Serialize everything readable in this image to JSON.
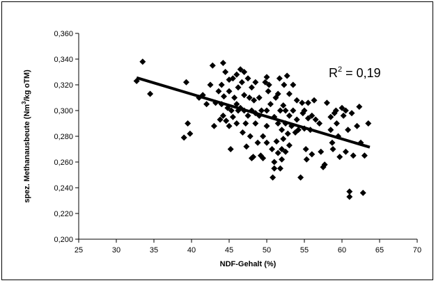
{
  "chart_data": {
    "type": "scatter",
    "title": "",
    "xlabel": "NDF-Gehalt (%)",
    "ylabel_parts": [
      "spez. Methanausbeute (Nm",
      "3",
      "/kg oTM)"
    ],
    "xlim": [
      25,
      70
    ],
    "ylim": [
      0.2,
      0.36
    ],
    "x_ticks": [
      "25",
      "30",
      "35",
      "40",
      "45",
      "50",
      "55",
      "60",
      "65",
      "70"
    ],
    "y_ticks": [
      "0,200",
      "0,220",
      "0,240",
      "0,260",
      "0,280",
      "0,300",
      "0,320",
      "0,340",
      "0,360"
    ],
    "grid": false,
    "legend": "none",
    "marker": "diamond",
    "marker_color": "#000000",
    "points": [
      [
        32.7,
        0.323
      ],
      [
        33.5,
        0.338
      ],
      [
        34.5,
        0.313
      ],
      [
        39.0,
        0.279
      ],
      [
        39.3,
        0.322
      ],
      [
        39.5,
        0.29
      ],
      [
        39.8,
        0.282
      ],
      [
        41.0,
        0.31
      ],
      [
        41.5,
        0.312
      ],
      [
        42.0,
        0.305
      ],
      [
        42.5,
        0.32
      ],
      [
        42.8,
        0.335
      ],
      [
        43.0,
        0.288
      ],
      [
        43.2,
        0.306
      ],
      [
        43.6,
        0.315
      ],
      [
        43.8,
        0.293
      ],
      [
        44.0,
        0.305
      ],
      [
        44.0,
        0.32
      ],
      [
        44.2,
        0.296
      ],
      [
        44.2,
        0.337
      ],
      [
        44.3,
        0.311
      ],
      [
        44.5,
        0.33
      ],
      [
        44.6,
        0.292
      ],
      [
        44.8,
        0.302
      ],
      [
        45.0,
        0.288
      ],
      [
        45.0,
        0.315
      ],
      [
        45.0,
        0.324
      ],
      [
        45.2,
        0.27
      ],
      [
        45.3,
        0.3
      ],
      [
        45.5,
        0.295
      ],
      [
        45.5,
        0.325
      ],
      [
        45.7,
        0.31
      ],
      [
        46.0,
        0.328
      ],
      [
        46.0,
        0.305
      ],
      [
        46.0,
        0.29
      ],
      [
        46.2,
        0.3
      ],
      [
        46.2,
        0.318
      ],
      [
        46.5,
        0.302
      ],
      [
        46.5,
        0.332
      ],
      [
        46.7,
        0.322
      ],
      [
        46.8,
        0.283
      ],
      [
        47.0,
        0.3
      ],
      [
        47.0,
        0.312
      ],
      [
        47.0,
        0.33
      ],
      [
        47.2,
        0.29
      ],
      [
        47.3,
        0.272
      ],
      [
        47.5,
        0.296
      ],
      [
        47.5,
        0.325
      ],
      [
        47.7,
        0.31
      ],
      [
        47.8,
        0.28
      ],
      [
        48.0,
        0.3
      ],
      [
        48.0,
        0.318
      ],
      [
        48.0,
        0.263
      ],
      [
        48.2,
        0.264
      ],
      [
        48.3,
        0.308
      ],
      [
        48.5,
        0.298
      ],
      [
        48.5,
        0.322
      ],
      [
        48.5,
        0.29
      ],
      [
        48.8,
        0.275
      ],
      [
        49.0,
        0.31
      ],
      [
        49.0,
        0.296
      ],
      [
        49.2,
        0.265
      ],
      [
        49.3,
        0.3
      ],
      [
        49.5,
        0.263
      ],
      [
        49.5,
        0.28
      ],
      [
        49.8,
        0.322
      ],
      [
        50.0,
        0.326
      ],
      [
        50.0,
        0.3
      ],
      [
        50.0,
        0.288
      ],
      [
        50.0,
        0.275
      ],
      [
        50.2,
        0.315
      ],
      [
        50.3,
        0.32
      ],
      [
        50.5,
        0.305
      ],
      [
        50.7,
        0.27
      ],
      [
        50.8,
        0.248
      ],
      [
        51.0,
        0.295
      ],
      [
        51.0,
        0.26
      ],
      [
        51.0,
        0.255
      ],
      [
        51.2,
        0.31
      ],
      [
        51.3,
        0.276
      ],
      [
        51.5,
        0.29
      ],
      [
        51.5,
        0.267
      ],
      [
        51.5,
        0.313
      ],
      [
        51.7,
        0.325
      ],
      [
        51.8,
        0.3
      ],
      [
        51.8,
        0.255
      ],
      [
        52.0,
        0.27
      ],
      [
        52.0,
        0.285
      ],
      [
        52.0,
        0.262
      ],
      [
        52.2,
        0.304
      ],
      [
        52.2,
        0.278
      ],
      [
        52.3,
        0.32
      ],
      [
        52.5,
        0.29
      ],
      [
        52.5,
        0.268
      ],
      [
        52.5,
        0.3
      ],
      [
        52.7,
        0.327
      ],
      [
        52.8,
        0.282
      ],
      [
        53.0,
        0.313
      ],
      [
        53.0,
        0.296
      ],
      [
        53.0,
        0.273
      ],
      [
        53.3,
        0.288
      ],
      [
        53.5,
        0.3
      ],
      [
        53.5,
        0.32
      ],
      [
        53.8,
        0.283
      ],
      [
        54.0,
        0.308
      ],
      [
        54.0,
        0.293
      ],
      [
        54.2,
        0.285
      ],
      [
        54.5,
        0.248
      ],
      [
        54.7,
        0.306
      ],
      [
        54.8,
        0.298
      ],
      [
        55.0,
        0.286
      ],
      [
        55.0,
        0.3
      ],
      [
        55.2,
        0.27
      ],
      [
        55.3,
        0.262
      ],
      [
        55.5,
        0.294
      ],
      [
        55.5,
        0.306
      ],
      [
        55.8,
        0.285
      ],
      [
        56.0,
        0.266
      ],
      [
        56.0,
        0.296
      ],
      [
        56.3,
        0.308
      ],
      [
        56.5,
        0.293
      ],
      [
        57.0,
        0.29
      ],
      [
        57.2,
        0.268
      ],
      [
        57.5,
        0.256
      ],
      [
        57.7,
        0.258
      ],
      [
        58.0,
        0.306
      ],
      [
        58.5,
        0.295
      ],
      [
        58.5,
        0.285
      ],
      [
        58.7,
        0.275
      ],
      [
        58.8,
        0.27
      ],
      [
        59.0,
        0.298
      ],
      [
        59.2,
        0.3
      ],
      [
        59.3,
        0.29
      ],
      [
        59.5,
        0.28
      ],
      [
        59.7,
        0.264
      ],
      [
        60.0,
        0.302
      ],
      [
        60.2,
        0.296
      ],
      [
        60.5,
        0.3
      ],
      [
        60.5,
        0.268
      ],
      [
        60.8,
        0.285
      ],
      [
        61.0,
        0.237
      ],
      [
        61.0,
        0.233
      ],
      [
        61.3,
        0.298
      ],
      [
        61.5,
        0.265
      ],
      [
        62.0,
        0.288
      ],
      [
        62.3,
        0.303
      ],
      [
        62.5,
        0.275
      ],
      [
        62.8,
        0.236
      ],
      [
        63.0,
        0.265
      ],
      [
        63.5,
        0.29
      ]
    ],
    "trendline": {
      "x": [
        32.7,
        63.7
      ],
      "y": [
        0.3255,
        0.2715
      ]
    },
    "annotation_parts": [
      "R",
      "2",
      " = 0,19"
    ]
  }
}
